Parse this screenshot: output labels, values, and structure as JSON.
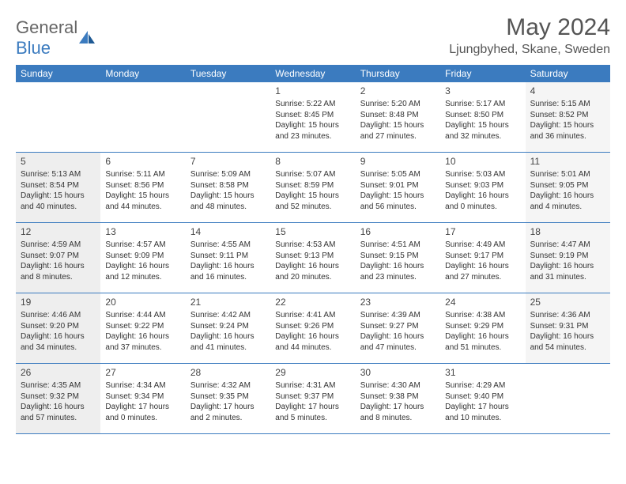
{
  "logo": {
    "text1": "General",
    "text2": "Blue"
  },
  "title": "May 2024",
  "location": "Ljungbyhed, Skane, Sweden",
  "day_headers": [
    "Sunday",
    "Monday",
    "Tuesday",
    "Wednesday",
    "Thursday",
    "Friday",
    "Saturday"
  ],
  "colors": {
    "header_bg": "#3b7bbf",
    "header_text": "#ffffff",
    "sunday_bg": "#eeeeee",
    "saturday_bg": "#f5f5f5",
    "border": "#3b7bbf"
  },
  "weeks": [
    [
      {
        "day": "",
        "sunrise": "",
        "sunset": "",
        "daylight": ""
      },
      {
        "day": "",
        "sunrise": "",
        "sunset": "",
        "daylight": ""
      },
      {
        "day": "",
        "sunrise": "",
        "sunset": "",
        "daylight": ""
      },
      {
        "day": "1",
        "sunrise": "Sunrise: 5:22 AM",
        "sunset": "Sunset: 8:45 PM",
        "daylight": "Daylight: 15 hours and 23 minutes."
      },
      {
        "day": "2",
        "sunrise": "Sunrise: 5:20 AM",
        "sunset": "Sunset: 8:48 PM",
        "daylight": "Daylight: 15 hours and 27 minutes."
      },
      {
        "day": "3",
        "sunrise": "Sunrise: 5:17 AM",
        "sunset": "Sunset: 8:50 PM",
        "daylight": "Daylight: 15 hours and 32 minutes."
      },
      {
        "day": "4",
        "sunrise": "Sunrise: 5:15 AM",
        "sunset": "Sunset: 8:52 PM",
        "daylight": "Daylight: 15 hours and 36 minutes."
      }
    ],
    [
      {
        "day": "5",
        "sunrise": "Sunrise: 5:13 AM",
        "sunset": "Sunset: 8:54 PM",
        "daylight": "Daylight: 15 hours and 40 minutes."
      },
      {
        "day": "6",
        "sunrise": "Sunrise: 5:11 AM",
        "sunset": "Sunset: 8:56 PM",
        "daylight": "Daylight: 15 hours and 44 minutes."
      },
      {
        "day": "7",
        "sunrise": "Sunrise: 5:09 AM",
        "sunset": "Sunset: 8:58 PM",
        "daylight": "Daylight: 15 hours and 48 minutes."
      },
      {
        "day": "8",
        "sunrise": "Sunrise: 5:07 AM",
        "sunset": "Sunset: 8:59 PM",
        "daylight": "Daylight: 15 hours and 52 minutes."
      },
      {
        "day": "9",
        "sunrise": "Sunrise: 5:05 AM",
        "sunset": "Sunset: 9:01 PM",
        "daylight": "Daylight: 15 hours and 56 minutes."
      },
      {
        "day": "10",
        "sunrise": "Sunrise: 5:03 AM",
        "sunset": "Sunset: 9:03 PM",
        "daylight": "Daylight: 16 hours and 0 minutes."
      },
      {
        "day": "11",
        "sunrise": "Sunrise: 5:01 AM",
        "sunset": "Sunset: 9:05 PM",
        "daylight": "Daylight: 16 hours and 4 minutes."
      }
    ],
    [
      {
        "day": "12",
        "sunrise": "Sunrise: 4:59 AM",
        "sunset": "Sunset: 9:07 PM",
        "daylight": "Daylight: 16 hours and 8 minutes."
      },
      {
        "day": "13",
        "sunrise": "Sunrise: 4:57 AM",
        "sunset": "Sunset: 9:09 PM",
        "daylight": "Daylight: 16 hours and 12 minutes."
      },
      {
        "day": "14",
        "sunrise": "Sunrise: 4:55 AM",
        "sunset": "Sunset: 9:11 PM",
        "daylight": "Daylight: 16 hours and 16 minutes."
      },
      {
        "day": "15",
        "sunrise": "Sunrise: 4:53 AM",
        "sunset": "Sunset: 9:13 PM",
        "daylight": "Daylight: 16 hours and 20 minutes."
      },
      {
        "day": "16",
        "sunrise": "Sunrise: 4:51 AM",
        "sunset": "Sunset: 9:15 PM",
        "daylight": "Daylight: 16 hours and 23 minutes."
      },
      {
        "day": "17",
        "sunrise": "Sunrise: 4:49 AM",
        "sunset": "Sunset: 9:17 PM",
        "daylight": "Daylight: 16 hours and 27 minutes."
      },
      {
        "day": "18",
        "sunrise": "Sunrise: 4:47 AM",
        "sunset": "Sunset: 9:19 PM",
        "daylight": "Daylight: 16 hours and 31 minutes."
      }
    ],
    [
      {
        "day": "19",
        "sunrise": "Sunrise: 4:46 AM",
        "sunset": "Sunset: 9:20 PM",
        "daylight": "Daylight: 16 hours and 34 minutes."
      },
      {
        "day": "20",
        "sunrise": "Sunrise: 4:44 AM",
        "sunset": "Sunset: 9:22 PM",
        "daylight": "Daylight: 16 hours and 37 minutes."
      },
      {
        "day": "21",
        "sunrise": "Sunrise: 4:42 AM",
        "sunset": "Sunset: 9:24 PM",
        "daylight": "Daylight: 16 hours and 41 minutes."
      },
      {
        "day": "22",
        "sunrise": "Sunrise: 4:41 AM",
        "sunset": "Sunset: 9:26 PM",
        "daylight": "Daylight: 16 hours and 44 minutes."
      },
      {
        "day": "23",
        "sunrise": "Sunrise: 4:39 AM",
        "sunset": "Sunset: 9:27 PM",
        "daylight": "Daylight: 16 hours and 47 minutes."
      },
      {
        "day": "24",
        "sunrise": "Sunrise: 4:38 AM",
        "sunset": "Sunset: 9:29 PM",
        "daylight": "Daylight: 16 hours and 51 minutes."
      },
      {
        "day": "25",
        "sunrise": "Sunrise: 4:36 AM",
        "sunset": "Sunset: 9:31 PM",
        "daylight": "Daylight: 16 hours and 54 minutes."
      }
    ],
    [
      {
        "day": "26",
        "sunrise": "Sunrise: 4:35 AM",
        "sunset": "Sunset: 9:32 PM",
        "daylight": "Daylight: 16 hours and 57 minutes."
      },
      {
        "day": "27",
        "sunrise": "Sunrise: 4:34 AM",
        "sunset": "Sunset: 9:34 PM",
        "daylight": "Daylight: 17 hours and 0 minutes."
      },
      {
        "day": "28",
        "sunrise": "Sunrise: 4:32 AM",
        "sunset": "Sunset: 9:35 PM",
        "daylight": "Daylight: 17 hours and 2 minutes."
      },
      {
        "day": "29",
        "sunrise": "Sunrise: 4:31 AM",
        "sunset": "Sunset: 9:37 PM",
        "daylight": "Daylight: 17 hours and 5 minutes."
      },
      {
        "day": "30",
        "sunrise": "Sunrise: 4:30 AM",
        "sunset": "Sunset: 9:38 PM",
        "daylight": "Daylight: 17 hours and 8 minutes."
      },
      {
        "day": "31",
        "sunrise": "Sunrise: 4:29 AM",
        "sunset": "Sunset: 9:40 PM",
        "daylight": "Daylight: 17 hours and 10 minutes."
      },
      {
        "day": "",
        "sunrise": "",
        "sunset": "",
        "daylight": ""
      }
    ]
  ]
}
